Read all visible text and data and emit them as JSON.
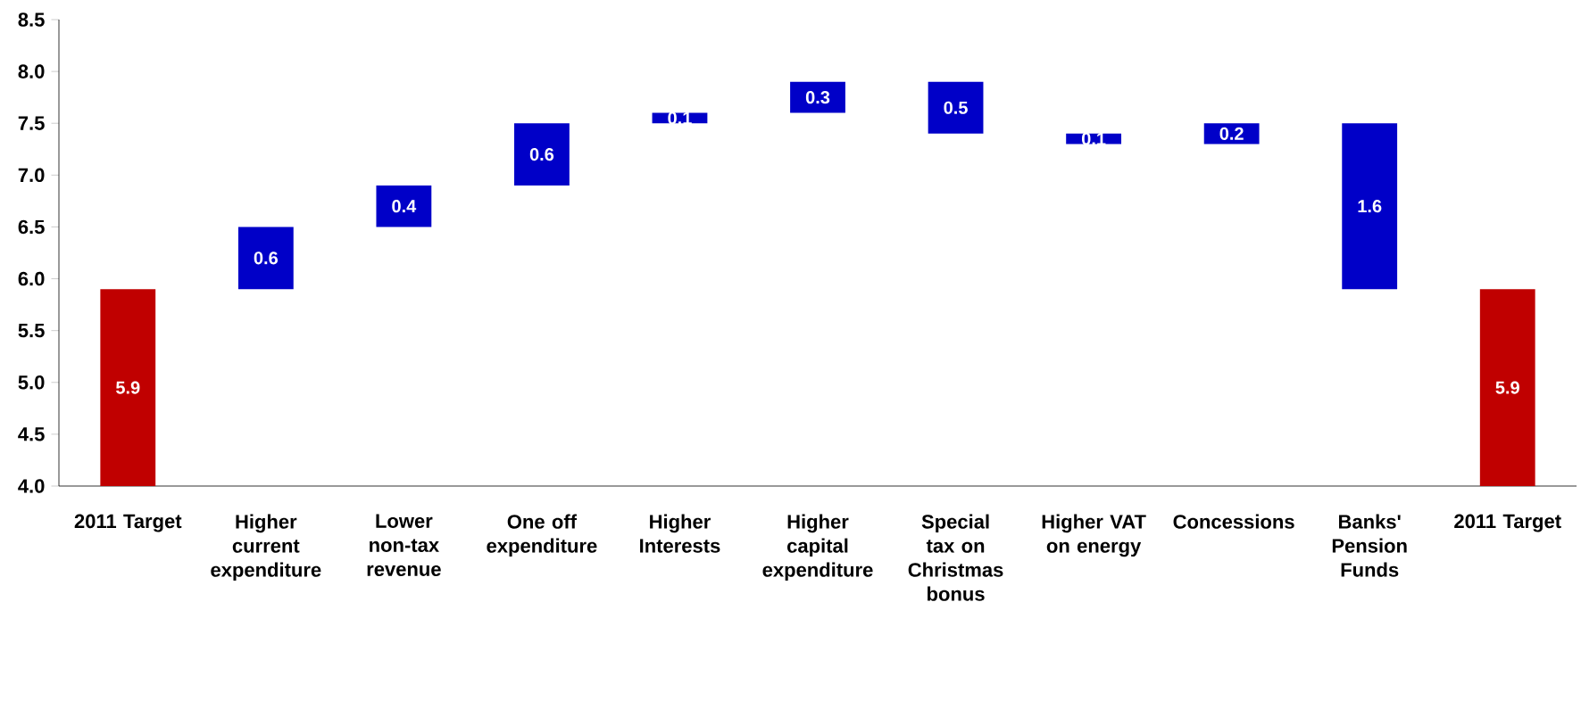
{
  "chart_data": {
    "type": "bar",
    "categories": [
      "2011 Target",
      "Higher current expenditure",
      "Lower non-tax revenue",
      "One off expenditure",
      "Higher Interests",
      "Higher capital expenditure",
      "Special tax on Christmas bonus",
      "Higher VAT on energy",
      "Concessions",
      "Banks' Pension Funds",
      "2011 Target"
    ],
    "values": [
      5.9,
      0.6,
      0.4,
      0.6,
      0.1,
      0.3,
      0.5,
      0.1,
      0.2,
      1.6,
      5.9
    ],
    "base": [
      null,
      5.9,
      6.5,
      6.9,
      7.5,
      7.6,
      7.4,
      7.3,
      7.3,
      5.9,
      null
    ],
    "colors": [
      "#c00000",
      "#0000c8",
      "#0000c8",
      "#0000c8",
      "#0000c8",
      "#0000c8",
      "#0000c8",
      "#0000c8",
      "#0000c8",
      "#0000c8",
      "#c00000"
    ],
    "data_labels": true,
    "ylim": [
      4.0,
      8.5
    ],
    "yticks": [
      {
        "value": 4.0,
        "label": "4.0"
      },
      {
        "value": 4.5,
        "label": "4.5"
      },
      {
        "value": 5.0,
        "label": "5.0"
      },
      {
        "value": 5.5,
        "label": "5.5"
      },
      {
        "value": 6.0,
        "label": "6.0"
      },
      {
        "value": 6.5,
        "label": "6.5"
      },
      {
        "value": 7.0,
        "label": "7.0"
      },
      {
        "value": 7.5,
        "label": "7.5"
      },
      {
        "value": 8.0,
        "label": "8.0"
      },
      {
        "value": 8.5,
        "label": "8.5"
      }
    ],
    "grid": false
  }
}
